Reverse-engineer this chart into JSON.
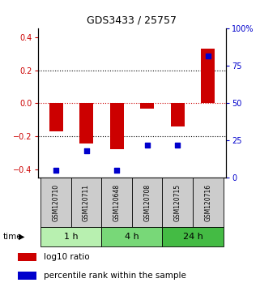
{
  "title": "GDS3433 / 25757",
  "samples": [
    "GSM120710",
    "GSM120711",
    "GSM120648",
    "GSM120708",
    "GSM120715",
    "GSM120716"
  ],
  "log10_ratio": [
    -0.17,
    -0.24,
    -0.275,
    -0.03,
    -0.14,
    0.33
  ],
  "percentile_rank": [
    5.0,
    18.0,
    5.0,
    22.0,
    22.0,
    82.0
  ],
  "time_groups": [
    {
      "label": "1 h",
      "indices": [
        0,
        1
      ],
      "color": "#b8f0b0"
    },
    {
      "label": "4 h",
      "indices": [
        2,
        3
      ],
      "color": "#78d878"
    },
    {
      "label": "24 h",
      "indices": [
        4,
        5
      ],
      "color": "#44bb44"
    }
  ],
  "ylim_left": [
    -0.45,
    0.45
  ],
  "ylim_right": [
    0,
    100
  ],
  "yticks_left": [
    -0.4,
    -0.2,
    0,
    0.2,
    0.4
  ],
  "yticks_right": [
    0,
    25,
    50,
    75,
    100
  ],
  "bar_color": "#cc0000",
  "dot_color": "#0000cc",
  "bar_width": 0.45,
  "hline_color": "#cc0000",
  "grid_color": "#000000",
  "left_tick_color": "#cc0000",
  "right_tick_color": "#0000cc",
  "sample_box_color": "#cccccc"
}
